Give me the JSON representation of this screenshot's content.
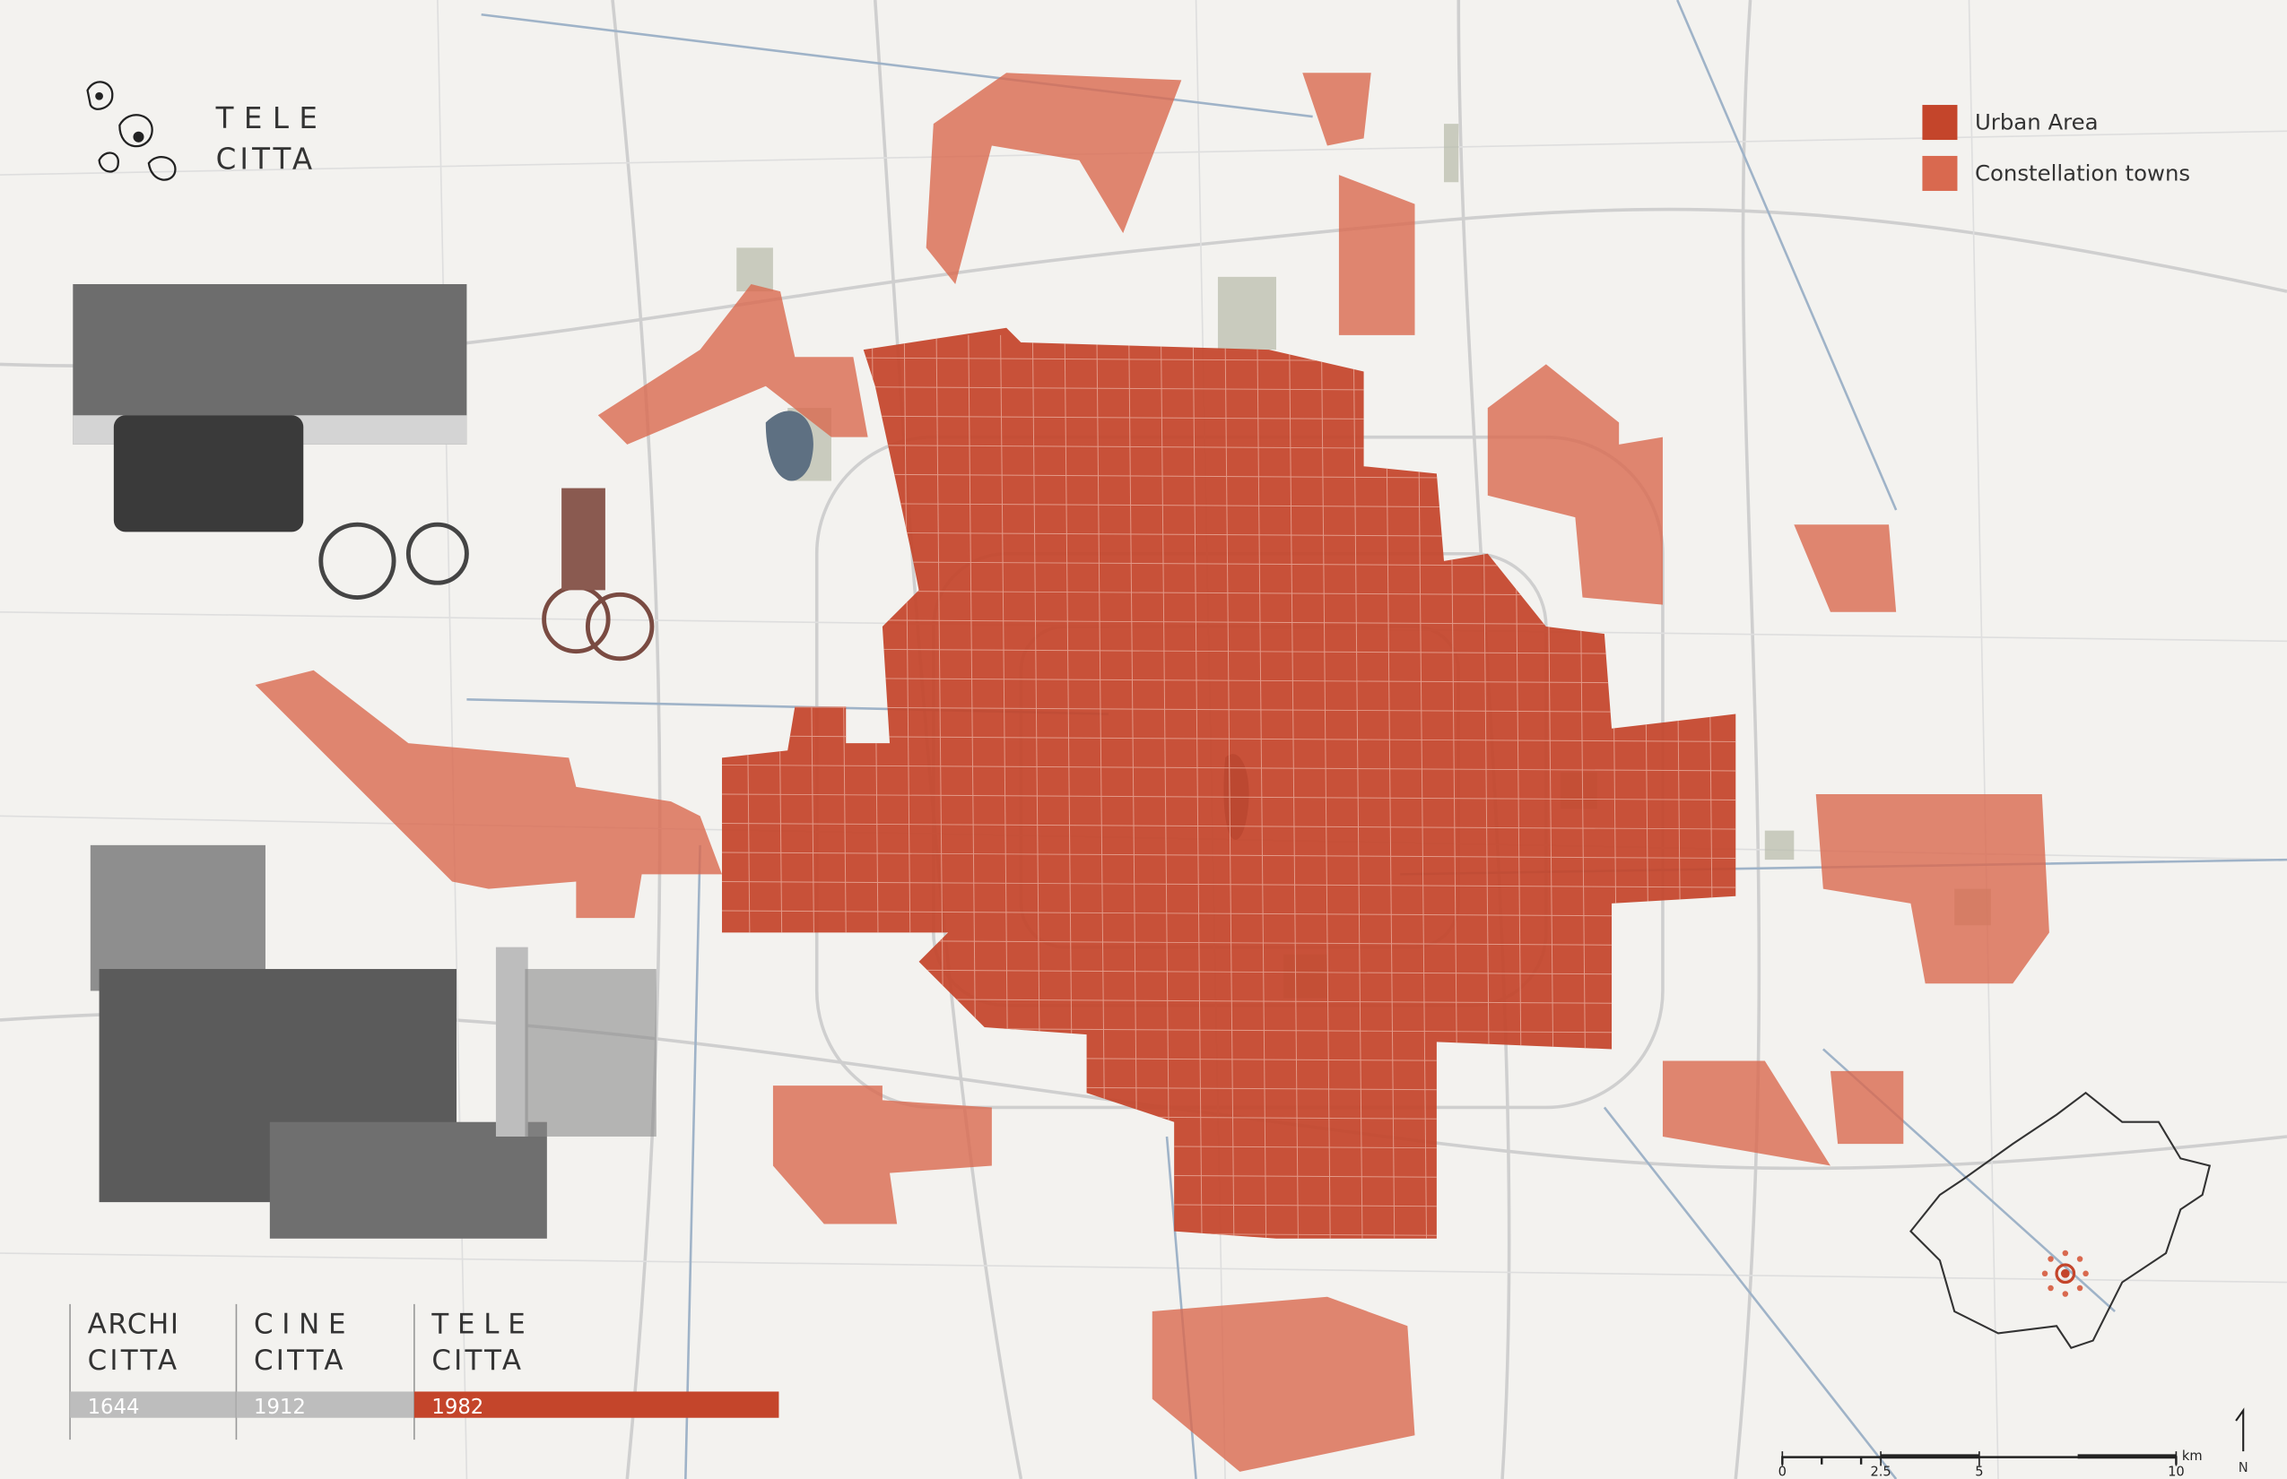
{
  "logo": {
    "line1": "TELE",
    "line2": "CITTA"
  },
  "legend": [
    {
      "label": "Urban Area",
      "color": "#c4452b"
    },
    {
      "label": "Constellation towns",
      "color": "#d9694f"
    }
  ],
  "timeline": [
    {
      "line1": "ARCHI",
      "line2": "CITTA",
      "year": 1644,
      "color": "#bdbdbd"
    },
    {
      "line1": "CINE",
      "line2": "CITTA",
      "year": 1912,
      "color": "#bdbdbd"
    },
    {
      "line1": "TELE",
      "line2": "CITTA",
      "year": 1982,
      "color": "#c4452b"
    }
  ],
  "scale_bar": {
    "ticks": [
      0,
      2.5,
      5,
      10
    ],
    "unit": "km"
  },
  "north": "N"
}
